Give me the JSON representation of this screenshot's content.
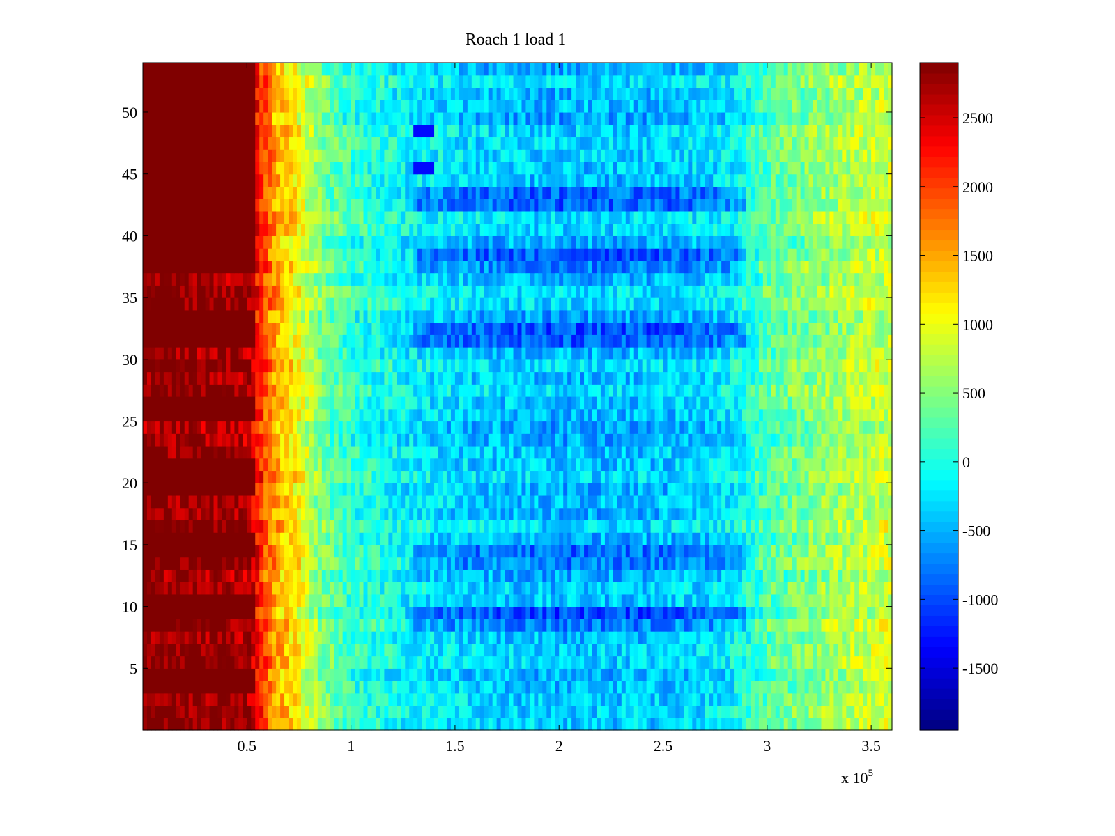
{
  "chart_data": {
    "type": "heatmap",
    "title": "Roach 1 load 1",
    "xlabel": "",
    "ylabel": "",
    "x_exponent_label": "x 10",
    "x_exponent_power": "5",
    "xlim": [
      0,
      3.6
    ],
    "ylim": [
      0,
      54
    ],
    "x_ticks": [
      0.5,
      1,
      1.5,
      2,
      2.5,
      3,
      3.5
    ],
    "x_tick_labels": [
      "0.5",
      "1",
      "1.5",
      "2",
      "2.5",
      "3",
      "3.5"
    ],
    "y_ticks": [
      5,
      10,
      15,
      20,
      25,
      30,
      35,
      40,
      45,
      50
    ],
    "y_tick_labels": [
      "5",
      "10",
      "15",
      "20",
      "25",
      "30",
      "35",
      "40",
      "45",
      "50"
    ],
    "colormap": "jet",
    "colorbar": {
      "range": [
        -1950,
        2900
      ],
      "ticks": [
        -1500,
        -1000,
        -500,
        0,
        500,
        1000,
        1500,
        2000,
        2500
      ],
      "tick_labels": [
        "-1500",
        "-1000",
        "-500",
        "0",
        "500",
        "1000",
        "1500",
        "2000",
        "2500"
      ]
    },
    "rows": 54,
    "high_rows": [
      4,
      5,
      10,
      11,
      15,
      16,
      20,
      21,
      22,
      26,
      27,
      32,
      33,
      34,
      38,
      39,
      40,
      41,
      42,
      43,
      44,
      45,
      46,
      47,
      48,
      49,
      50,
      51,
      52,
      53,
      54
    ],
    "cold_rows": [
      9,
      10,
      14,
      15,
      32,
      33,
      38,
      39,
      43,
      44
    ],
    "profile": {
      "x": [
        0,
        0.5,
        0.55,
        0.62,
        0.75,
        0.85,
        1.0,
        1.3,
        1.6,
        2.0,
        2.5,
        2.8,
        3.0,
        3.3,
        3.6
      ],
      "value": [
        2850,
        2700,
        2300,
        1600,
        1050,
        450,
        100,
        -200,
        -350,
        -450,
        -400,
        -250,
        250,
        600,
        850
      ]
    }
  }
}
